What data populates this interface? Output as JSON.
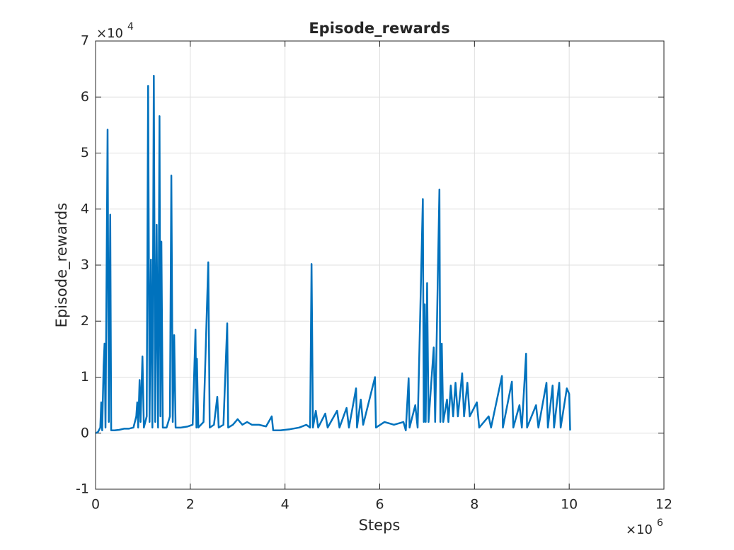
{
  "chart_data": {
    "type": "line",
    "title": "Episode_rewards",
    "x_label": "Steps",
    "y_label": "Episode_rewards",
    "x_multiplier": {
      "base": "×10",
      "exponent": "6"
    },
    "y_multiplier": {
      "base": "×10",
      "exponent": "4"
    },
    "xlim": [
      0,
      12
    ],
    "xticks": [
      0,
      2,
      4,
      6,
      8,
      10,
      12
    ],
    "ylim": [
      -1,
      7
    ],
    "yticks": [
      -1,
      0,
      1,
      2,
      3,
      4,
      5,
      6,
      7
    ],
    "grid": true,
    "series": [
      {
        "name": "Episode_rewards",
        "color": "#0072bd",
        "x": [
          0,
          0.05,
          0.1,
          0.12,
          0.14,
          0.17,
          0.19,
          0.21,
          0.254,
          0.28,
          0.31,
          0.33,
          0.4,
          0.5,
          0.6,
          0.7,
          0.8,
          0.86,
          0.88,
          0.9,
          0.93,
          0.95,
          0.99,
          1.02,
          1.08,
          1.11,
          1.14,
          1.17,
          1.2,
          1.23,
          1.26,
          1.29,
          1.32,
          1.35,
          1.37,
          1.39,
          1.42,
          1.5,
          1.57,
          1.6,
          1.63,
          1.66,
          1.69,
          1.8,
          1.95,
          2.05,
          2.11,
          2.13,
          2.14,
          2.17,
          2.28,
          2.38,
          2.41,
          2.5,
          2.57,
          2.6,
          2.7,
          2.78,
          2.8,
          2.9,
          3.0,
          3.1,
          3.2,
          3.3,
          3.45,
          3.6,
          3.72,
          3.75,
          3.9,
          4.1,
          4.3,
          4.45,
          4.53,
          4.56,
          4.59,
          4.65,
          4.7,
          4.85,
          4.9,
          5.1,
          5.15,
          5.3,
          5.35,
          5.5,
          5.52,
          5.6,
          5.65,
          5.9,
          5.92,
          6.1,
          6.3,
          6.5,
          6.55,
          6.61,
          6.63,
          6.75,
          6.8,
          6.91,
          6.93,
          6.95,
          6.97,
          7.0,
          7.03,
          7.14,
          7.17,
          7.26,
          7.28,
          7.31,
          7.34,
          7.42,
          7.45,
          7.5,
          7.55,
          7.6,
          7.65,
          7.74,
          7.78,
          7.85,
          7.9,
          8.05,
          8.1,
          8.3,
          8.35,
          8.58,
          8.6,
          8.79,
          8.82,
          8.95,
          9.0,
          9.09,
          9.11,
          9.3,
          9.35,
          9.52,
          9.55,
          9.65,
          9.68,
          9.79,
          9.82,
          9.95,
          10.0,
          10.02
        ],
        "values": [
          0,
          0.02,
          0.1,
          0.55,
          0.05,
          1.2,
          1.6,
          0.1,
          5.42,
          0.2,
          3.9,
          0.05,
          0.05,
          0.06,
          0.08,
          0.08,
          0.1,
          0.3,
          0.55,
          0.1,
          0.95,
          0.2,
          1.37,
          0.1,
          0.3,
          6.2,
          0.2,
          3.1,
          0.1,
          6.38,
          0.2,
          3.72,
          0.1,
          5.66,
          0.3,
          3.42,
          0.1,
          0.1,
          0.3,
          4.6,
          0.2,
          1.75,
          0.1,
          0.1,
          0.12,
          0.15,
          1.85,
          0.1,
          1.33,
          0.1,
          0.2,
          3.05,
          0.1,
          0.15,
          0.65,
          0.1,
          0.15,
          1.96,
          0.1,
          0.15,
          0.25,
          0.15,
          0.2,
          0.15,
          0.15,
          0.12,
          0.3,
          0.05,
          0.05,
          0.07,
          0.1,
          0.15,
          0.1,
          3.02,
          0.1,
          0.4,
          0.1,
          0.35,
          0.1,
          0.4,
          0.1,
          0.45,
          0.1,
          0.8,
          0.1,
          0.6,
          0.15,
          1.0,
          0.1,
          0.2,
          0.15,
          0.2,
          0.05,
          0.98,
          0.1,
          0.5,
          0.1,
          4.18,
          0.2,
          2.3,
          0.2,
          2.68,
          0.2,
          1.53,
          0.2,
          4.35,
          0.2,
          1.6,
          0.2,
          0.6,
          0.2,
          0.85,
          0.3,
          0.9,
          0.3,
          1.07,
          0.3,
          0.9,
          0.3,
          0.55,
          0.1,
          0.3,
          0.1,
          1.02,
          0.1,
          0.92,
          0.1,
          0.5,
          0.1,
          1.42,
          0.1,
          0.5,
          0.1,
          0.9,
          0.1,
          0.85,
          0.1,
          0.9,
          0.1,
          0.8,
          0.7,
          0.05
        ]
      }
    ]
  }
}
